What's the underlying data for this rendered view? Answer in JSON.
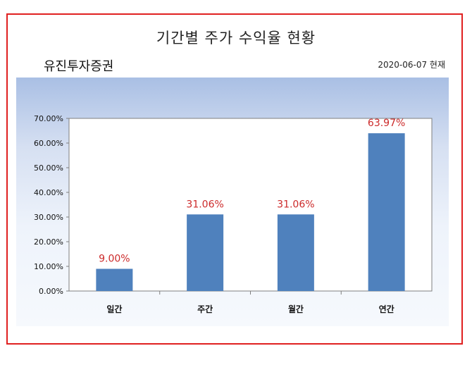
{
  "title": "기간별 주가 수익율 현황",
  "company": "유진투자증권",
  "as_of": "2020-06-07 현재",
  "colors": {
    "bar": "#4f81bd",
    "frame": "#e02020",
    "data_label": "#cc2a2a"
  },
  "chart_data": {
    "type": "bar",
    "categories": [
      "일간",
      "주간",
      "월간",
      "연간"
    ],
    "values": [
      9.0,
      31.06,
      31.06,
      63.97
    ],
    "data_labels": [
      "9.00%",
      "31.06%",
      "31.06%",
      "63.97%"
    ],
    "yticks": [
      "0.00%",
      "10.00%",
      "20.00%",
      "30.00%",
      "40.00%",
      "50.00%",
      "60.00%",
      "70.00%"
    ],
    "ylim": [
      0,
      70
    ],
    "grid": false,
    "legend": "none"
  }
}
